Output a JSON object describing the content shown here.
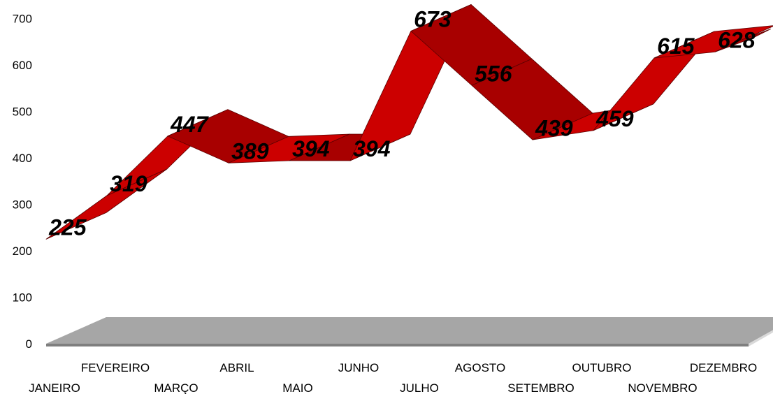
{
  "chart_data": {
    "type": "line",
    "title": "",
    "xlabel": "",
    "ylabel": "",
    "ylim": [
      0,
      700
    ],
    "yticks": [
      0,
      100,
      200,
      300,
      400,
      500,
      600,
      700
    ],
    "categories": [
      "JANEIRO",
      "FEVEREIRO",
      "MARÇO",
      "ABRIL",
      "MAIO",
      "JUNHO",
      "JULHO",
      "AGOSTO",
      "SETEMBRO",
      "OUTUBRO",
      "NOVEMBRO",
      "DEZEMBRO"
    ],
    "series": [
      {
        "values": [
          225,
          319,
          447,
          389,
          394,
          394,
          673,
          556,
          439,
          459,
          615,
          628
        ]
      }
    ],
    "style": "3d-ribbon",
    "legend": "none",
    "grid": false,
    "colors": {
      "ribbon_top": "#cc0000",
      "ribbon_front": "#a80000",
      "ribbon_edge": "#5a0000",
      "floor": "#a6a6a6",
      "floor_edge": "#7f7f7f"
    }
  }
}
